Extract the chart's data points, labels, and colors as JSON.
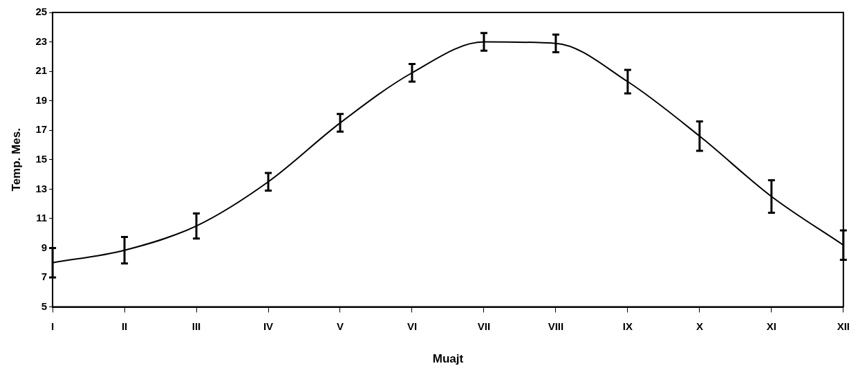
{
  "chart_data": {
    "type": "line",
    "xlabel": "Muajt",
    "ylabel": "Temp. Mes.",
    "categories": [
      "I",
      "II",
      "III",
      "IV",
      "V",
      "VI",
      "VII",
      "VIII",
      "IX",
      "X",
      "XI",
      "XII"
    ],
    "series": [
      {
        "color": "#000000",
        "values": [
          8.0,
          8.85,
          10.5,
          13.5,
          17.5,
          20.9,
          23.0,
          22.9,
          20.3,
          16.6,
          12.5,
          9.2
        ],
        "errors": [
          1.0,
          0.9,
          0.85,
          0.6,
          0.6,
          0.6,
          0.6,
          0.6,
          0.8,
          1.0,
          1.1,
          1.0
        ]
      }
    ],
    "ylim": [
      5,
      25
    ],
    "yticks": [
      5,
      7,
      9,
      11,
      13,
      15,
      17,
      19,
      21,
      23,
      25
    ],
    "grid": false,
    "legend": false,
    "marker": "none",
    "line_style": "solid"
  }
}
